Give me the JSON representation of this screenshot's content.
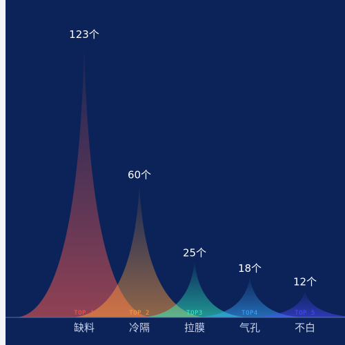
{
  "chart_data": {
    "type": "pictorial-peak",
    "categories": [
      "缺料",
      "冷隔",
      "拉膜",
      "气孔",
      "不白"
    ],
    "values": [
      123,
      60,
      25,
      18,
      12
    ],
    "value_suffix": "个",
    "rank_labels": [
      "TOP 1",
      "TOP 2",
      "TOP3",
      "TOP4",
      "TOP 5"
    ],
    "ylim": [
      0,
      130
    ],
    "colors": [
      "#ff5b4f",
      "#ff9d3b",
      "#34f5c2",
      "#3aa8ff",
      "#4b4bff"
    ]
  }
}
